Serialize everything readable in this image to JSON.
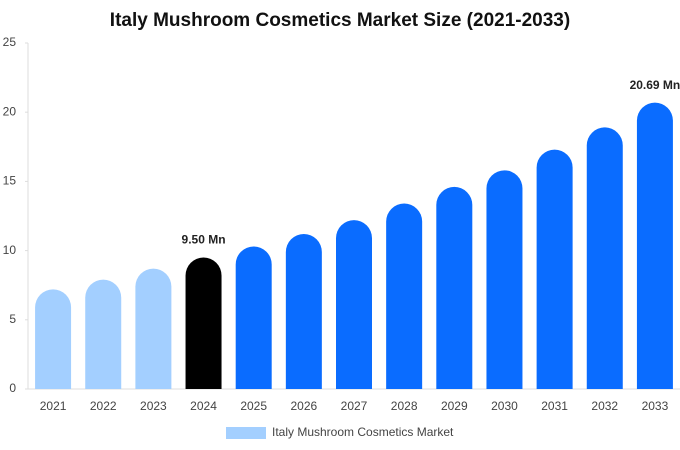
{
  "chart_data": {
    "type": "bar",
    "title": "Italy Mushroom Cosmetics Market Size (2021-2033)",
    "categories": [
      "2021",
      "2022",
      "2023",
      "2024",
      "2025",
      "2026",
      "2027",
      "2028",
      "2029",
      "2030",
      "2031",
      "2032",
      "2033"
    ],
    "series": [
      {
        "name": "Italy Mushroom Cosmetics Market",
        "color": "#a3cfff",
        "colors": [
          "#a3cfff",
          "#a3cfff",
          "#a3cfff",
          "#000000",
          "#0a6cff",
          "#0a6cff",
          "#0a6cff",
          "#0a6cff",
          "#0a6cff",
          "#0a6cff",
          "#0a6cff",
          "#0a6cff",
          "#0a6cff"
        ],
        "values": [
          7.2,
          7.9,
          8.7,
          9.5,
          10.3,
          11.2,
          12.2,
          13.4,
          14.6,
          15.8,
          17.3,
          18.9,
          20.69
        ],
        "value_labels": [
          null,
          null,
          null,
          "9.50 Mn",
          null,
          null,
          null,
          null,
          null,
          null,
          null,
          null,
          "20.69 Mn"
        ]
      }
    ],
    "ylim": [
      0,
      25
    ],
    "yticks": [
      0,
      5,
      10,
      15,
      20,
      25
    ],
    "grid": false,
    "legend": "bottom"
  }
}
